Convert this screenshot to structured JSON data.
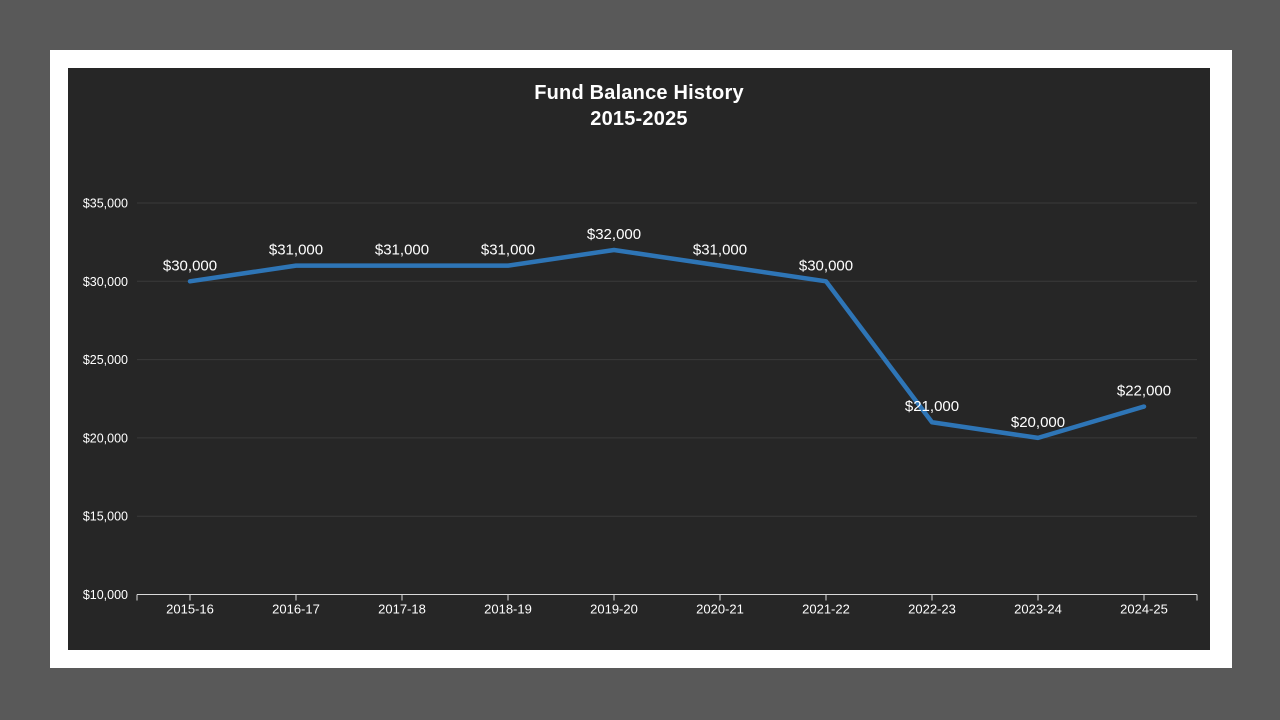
{
  "page": {
    "background_color": "#595959",
    "slide_background_color": "#ffffff"
  },
  "chart": {
    "title_line1": "Fund Balance History",
    "title_line2": "2015-2025",
    "background_color": "#262626"
  },
  "chart_data": {
    "type": "line",
    "title": "Fund Balance History 2015-2025",
    "categories": [
      "2015-16",
      "2016-17",
      "2017-18",
      "2018-19",
      "2019-20",
      "2020-21",
      "2021-22",
      "2022-23",
      "2023-24",
      "2024-25"
    ],
    "values": [
      30000,
      31000,
      31000,
      31000,
      32000,
      31000,
      30000,
      21000,
      20000,
      22000
    ],
    "data_labels": [
      "$30,000",
      "$31,000",
      "$31,000",
      "$31,000",
      "$32,000",
      "$31,000",
      "$30,000",
      "$21,000",
      "$20,000",
      "$22,000"
    ],
    "xlabel": "",
    "ylabel": "",
    "ylim": [
      10000,
      35000
    ],
    "yticks": [
      {
        "value": 10000,
        "label": "$10,000"
      },
      {
        "value": 15000,
        "label": "$15,000"
      },
      {
        "value": 20000,
        "label": "$20,000"
      },
      {
        "value": 25000,
        "label": "$25,000"
      },
      {
        "value": 30000,
        "label": "$30,000"
      },
      {
        "value": 35000,
        "label": "$35,000"
      }
    ],
    "grid": true,
    "legend": "none",
    "line_color": "#2E75B6",
    "line_width": 4.5,
    "gridline_color": "#3a3a3a",
    "axis_color": "#d9d9d9",
    "label_color": "#ffffff"
  }
}
